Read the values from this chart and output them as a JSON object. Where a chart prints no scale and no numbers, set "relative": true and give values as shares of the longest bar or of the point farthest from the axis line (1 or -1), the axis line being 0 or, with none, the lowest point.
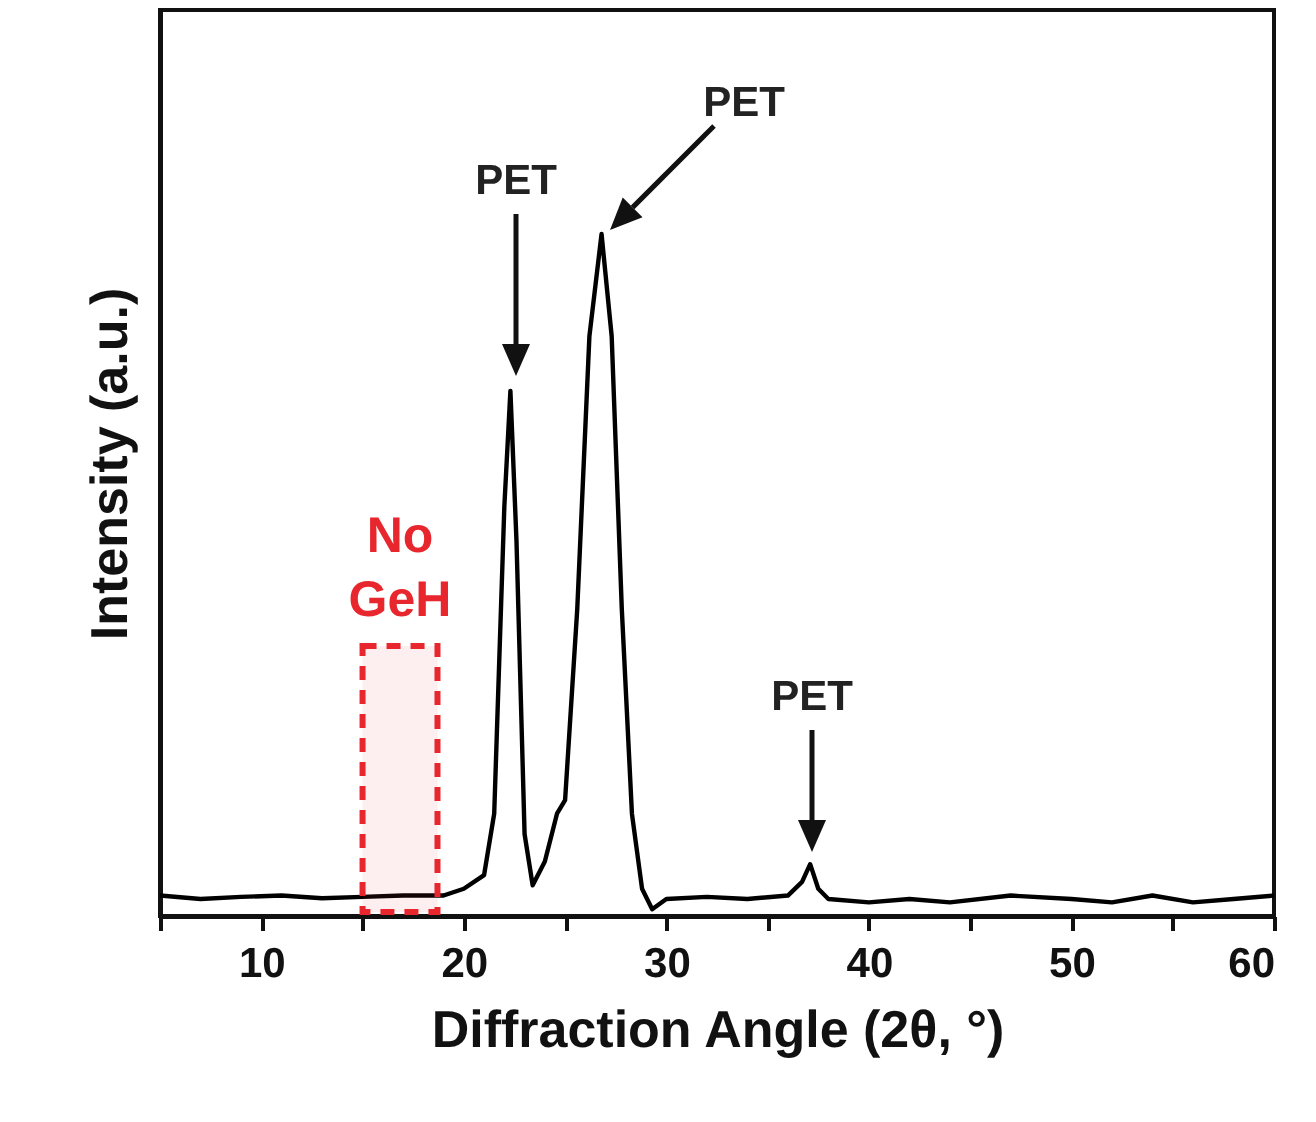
{
  "chart_data": {
    "type": "line",
    "relative": true,
    "xlabel": "Diffraction Angle (2θ, °)",
    "ylabel": "Intensity (a.u.)",
    "xlim": [
      5,
      60
    ],
    "xticks": [
      {
        "value": 5,
        "label": null
      },
      10,
      {
        "value": 15,
        "label": null
      },
      20,
      {
        "value": 25,
        "label": null
      },
      30,
      {
        "value": 35,
        "label": null
      },
      40,
      {
        "value": 45,
        "label": null
      },
      50,
      {
        "value": 55,
        "label": null
      },
      60
    ],
    "x": [
      5,
      7,
      9,
      11,
      13,
      15,
      17,
      19,
      20,
      21,
      21.5,
      22,
      22.3,
      22.6,
      23,
      23.4,
      24,
      24.6,
      25,
      25.6,
      26.2,
      26.8,
      27.3,
      27.8,
      28.3,
      28.8,
      29.3,
      30,
      32,
      34,
      36,
      36.7,
      37.1,
      37.5,
      38,
      40,
      42,
      44,
      47,
      50,
      52,
      54,
      56,
      58,
      60
    ],
    "series": [
      {
        "color": "#000000",
        "values": [
          0.03,
          0.025,
          0.028,
          0.03,
          0.026,
          0.028,
          0.03,
          0.03,
          0.04,
          0.06,
          0.15,
          0.6,
          0.77,
          0.55,
          0.12,
          0.045,
          0.08,
          0.15,
          0.17,
          0.45,
          0.85,
          1.0,
          0.85,
          0.45,
          0.15,
          0.04,
          0.01,
          0.025,
          0.028,
          0.025,
          0.03,
          0.05,
          0.076,
          0.04,
          0.025,
          0.02,
          0.025,
          0.02,
          0.03,
          0.025,
          0.02,
          0.03,
          0.02,
          0.025,
          0.03
        ]
      }
    ],
    "annotations": [
      "PET",
      "PET",
      "PET"
    ],
    "bands": [
      {
        "axis": "x",
        "from": 15,
        "to": 18.7,
        "label": "No GeH",
        "color": "#e8262d"
      }
    ]
  }
}
